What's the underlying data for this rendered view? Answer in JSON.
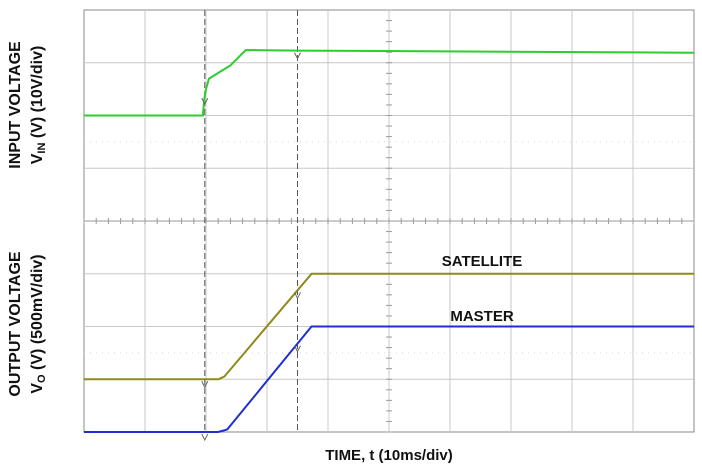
{
  "chart_data": {
    "type": "line",
    "xlabel": "TIME, t (10ms/div)",
    "ylabel_top_line1": "INPUT VOLTAGE",
    "ylabel_top_line2_pre": "V",
    "ylabel_top_line2_sub": "IN",
    "ylabel_top_line2_post": " (V) (10V/div)",
    "ylabel_bottom_line1": "OUTPUT VOLTAGE",
    "ylabel_bottom_line2_pre": "V",
    "ylabel_bottom_line2_sub": "O",
    "ylabel_bottom_line2_post": " (V) (500mV/div)",
    "grid": true,
    "x_divisions": 10,
    "y_divisions": 8,
    "series": [
      {
        "name": "",
        "color": "#2ecc2e",
        "panel": "input",
        "x_div": [
          0,
          1.95,
          1.97,
          2.0,
          2.05,
          2.4,
          2.65,
          2.68,
          3.5,
          10.0
        ],
        "y_div": [
          6.0,
          6.0,
          6.3,
          6.5,
          6.7,
          6.95,
          7.24,
          7.24,
          7.23,
          7.19
        ]
      },
      {
        "name": "SATELLITE",
        "color": "#8e8a1c",
        "panel": "output",
        "x_div": [
          0,
          2.2,
          2.3,
          3.73,
          10.0
        ],
        "y_div": [
          1.0,
          1.0,
          1.05,
          3.0,
          3.0
        ]
      },
      {
        "name": "MASTER",
        "color": "#1f2fcf",
        "panel": "output",
        "x_div": [
          0,
          2.2,
          2.35,
          3.73,
          10.0
        ],
        "y_div": [
          0.0,
          0.0,
          0.05,
          2.0,
          2.0
        ]
      }
    ],
    "cursors_x_div": [
      1.98,
      3.5
    ],
    "legend": "inline-labels"
  }
}
